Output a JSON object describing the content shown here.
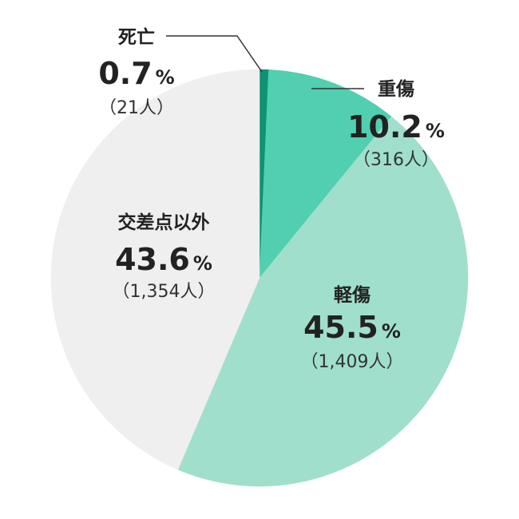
{
  "chart_data": {
    "type": "pie",
    "slices": [
      {
        "label": "死亡",
        "percent": 0.7,
        "percent_text": "0.7",
        "unit": "%",
        "count_text": "（21人）",
        "color": "#0e9273"
      },
      {
        "label": "重傷",
        "percent": 10.2,
        "percent_text": "10.2",
        "unit": "%",
        "count_text": "（316人）",
        "color": "#52cfb0"
      },
      {
        "label": "軽傷",
        "percent": 45.5,
        "percent_text": "45.5",
        "unit": "%",
        "count_text": "（1,409人）",
        "color": "#a0dfcc"
      },
      {
        "label": "交差点以外",
        "percent": 43.6,
        "percent_text": "43.6",
        "unit": "%",
        "count_text": "（1,354人）",
        "color": "#efefef"
      }
    ],
    "start_angle_deg": 0,
    "direction": "clockwise"
  }
}
